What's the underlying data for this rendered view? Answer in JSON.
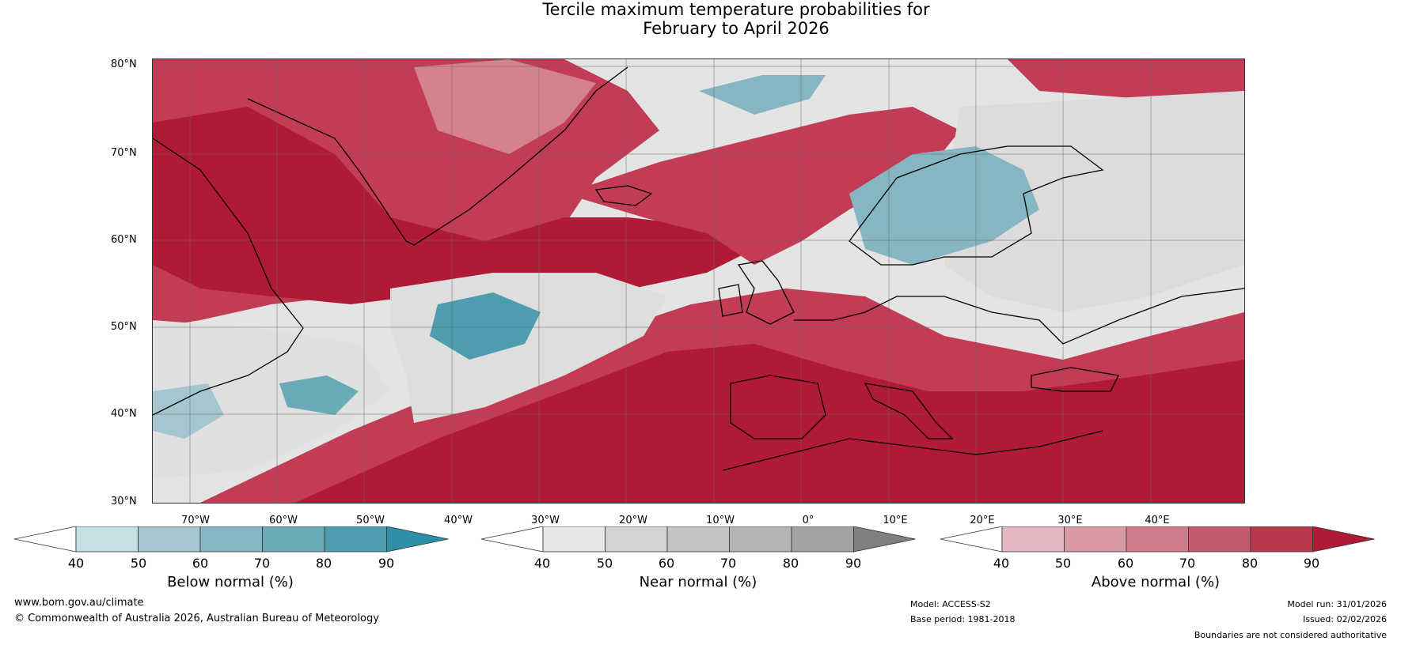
{
  "title_line1": "Tercile maximum temperature probabilities for",
  "title_line2": "February to April 2026",
  "lat_labels": [
    "80°N",
    "70°N",
    "60°N",
    "50°N",
    "40°N",
    "30°N"
  ],
  "lon_labels": [
    "70°W",
    "60°W",
    "50°W",
    "40°W",
    "30°W",
    "20°W",
    "10°W",
    "0°",
    "10°E",
    "20°E",
    "30°E",
    "40°E"
  ],
  "colorbars": [
    {
      "label": "Below normal (%)",
      "ticks": [
        "40",
        "50",
        "60",
        "70",
        "80",
        "90"
      ],
      "colors": [
        "#ffffff",
        "#c6e0e6",
        "#a3c6cf",
        "#86b6c2",
        "#6aa9b8",
        "#4d9cb0",
        "#2e8fa6"
      ]
    },
    {
      "label": "Near normal (%)",
      "ticks": [
        "40",
        "50",
        "60",
        "70",
        "80",
        "90"
      ],
      "colors": [
        "#ffffff",
        "#e6e6e6",
        "#d3d3d3",
        "#c4c4c4",
        "#b4b4b4",
        "#a3a3a3",
        "#808080"
      ]
    },
    {
      "label": "Above normal (%)",
      "ticks": [
        "40",
        "50",
        "60",
        "70",
        "80",
        "90"
      ],
      "colors": [
        "#ffffff",
        "#e4b8c0",
        "#d99aa5",
        "#cf7a88",
        "#c45a6c",
        "#b8384d",
        "#b01a36"
      ]
    }
  ],
  "footer": {
    "website": "www.bom.gov.au/climate",
    "copyright": "© Commonwealth of Australia 2026, Australian Bureau of Meteorology",
    "model": "Model: ACCESS-S2",
    "base_period": "Base period: 1981-2018",
    "model_run": "Model run: 31/01/2026",
    "issued": "Issued: 02/02/2026",
    "disclaimer": "Boundaries are not considered authoritative"
  }
}
